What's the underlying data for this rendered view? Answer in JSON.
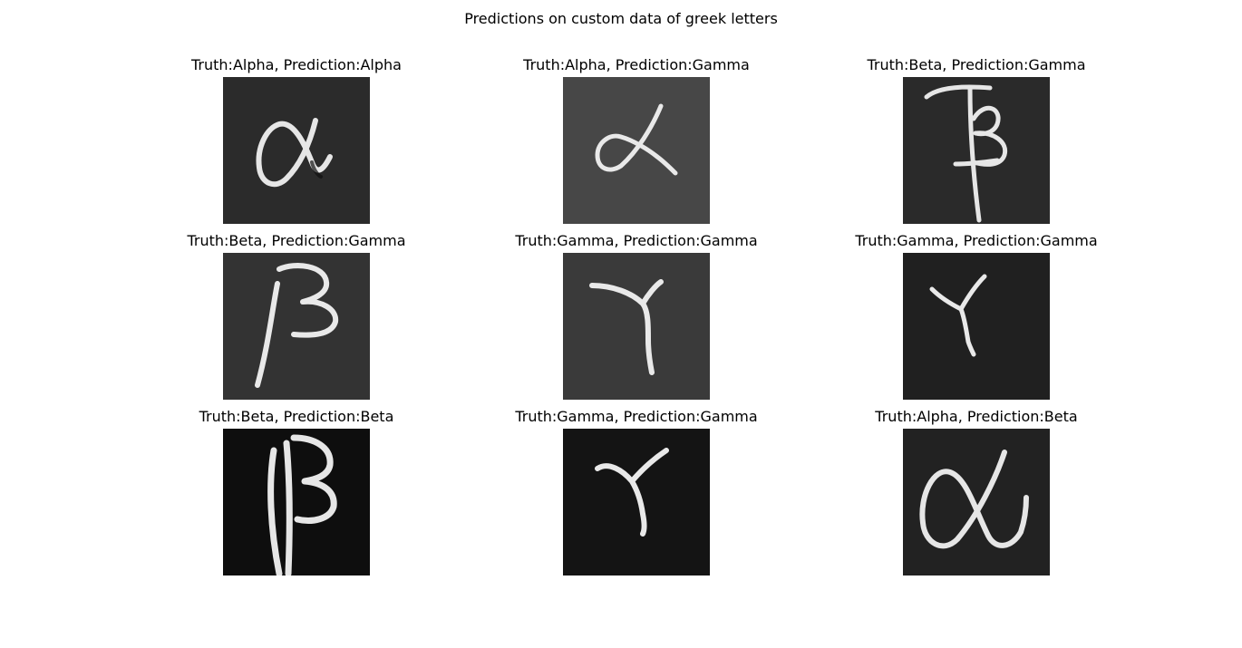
{
  "figure": {
    "title": "Predictions on custom data of greek letters"
  },
  "panels": [
    {
      "title": "Truth:Alpha, Prediction:Alpha",
      "truth": "Alpha",
      "prediction": "Alpha",
      "image_glyph": "handwritten-alpha",
      "background": "#2b2b2b"
    },
    {
      "title": "Truth:Alpha, Prediction:Gamma",
      "truth": "Alpha",
      "prediction": "Gamma",
      "image_glyph": "handwritten-alpha",
      "background": "#474747"
    },
    {
      "title": "Truth:Beta, Prediction:Gamma",
      "truth": "Beta",
      "prediction": "Gamma",
      "image_glyph": "handwritten-beta",
      "background": "#2a2a2a"
    },
    {
      "title": "Truth:Beta, Prediction:Gamma",
      "truth": "Beta",
      "prediction": "Gamma",
      "image_glyph": "handwritten-beta",
      "background": "#333333"
    },
    {
      "title": "Truth:Gamma, Prediction:Gamma",
      "truth": "Gamma",
      "prediction": "Gamma",
      "image_glyph": "handwritten-gamma",
      "background": "#3a3a3a"
    },
    {
      "title": "Truth:Gamma, Prediction:Gamma",
      "truth": "Gamma",
      "prediction": "Gamma",
      "image_glyph": "handwritten-gamma",
      "background": "#202020"
    },
    {
      "title": "Truth:Beta, Prediction:Beta",
      "truth": "Beta",
      "prediction": "Beta",
      "image_glyph": "handwritten-beta",
      "background": "#0e0e0e"
    },
    {
      "title": "Truth:Gamma, Prediction:Gamma",
      "truth": "Gamma",
      "prediction": "Gamma",
      "image_glyph": "handwritten-gamma",
      "background": "#141414"
    },
    {
      "title": "Truth:Alpha, Prediction:Beta",
      "truth": "Alpha",
      "prediction": "Beta",
      "image_glyph": "handwritten-alpha",
      "background": "#222222"
    }
  ]
}
